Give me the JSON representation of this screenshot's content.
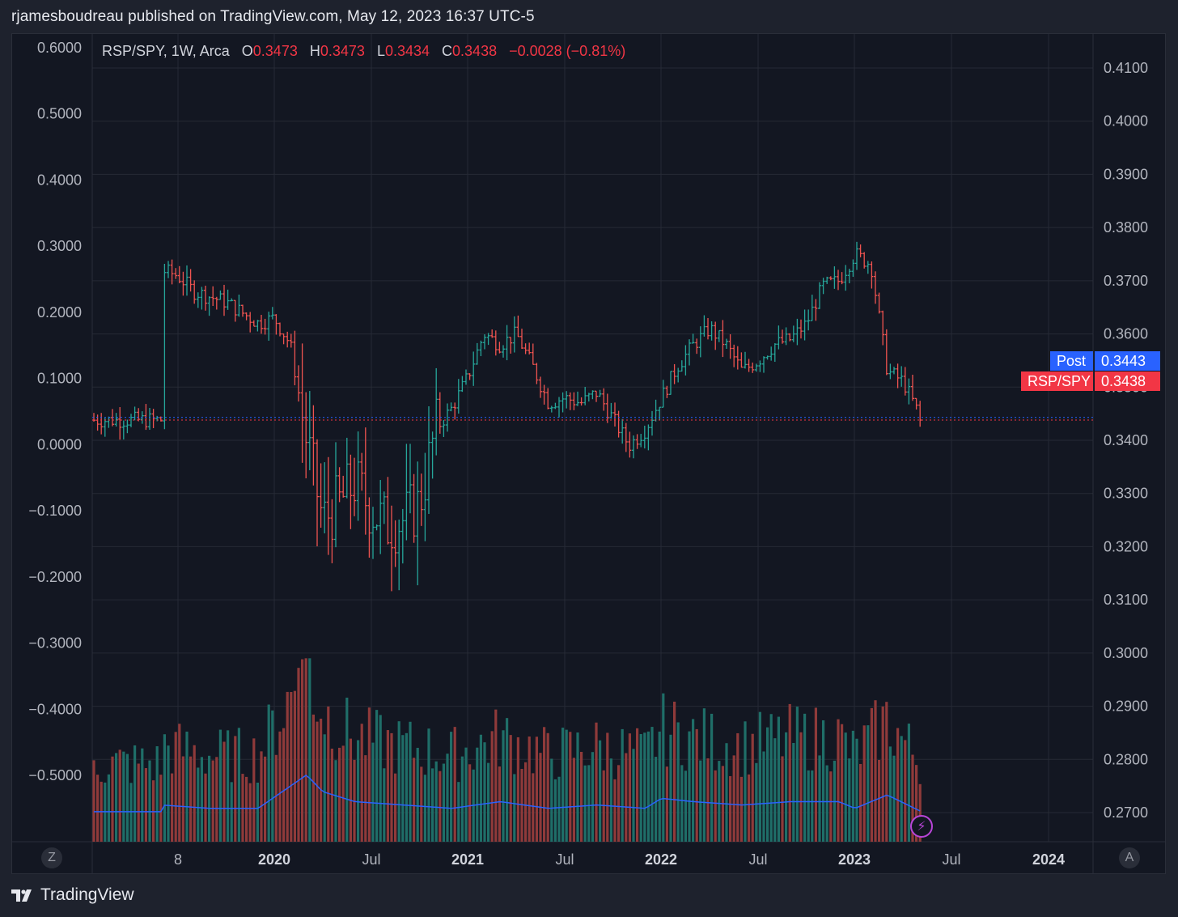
{
  "header": {
    "author": "rjamesboudreau",
    "published_text": "published on TradingView.com, May 12, 2023 16:37 UTC-5"
  },
  "legend": {
    "symbol": "RSP/SPY, 1W, Arca",
    "o_label": "O",
    "o_value": "0.3473",
    "h_label": "H",
    "h_value": "0.3473",
    "l_label": "L",
    "l_value": "0.3434",
    "c_label": "C",
    "c_value": "0.3438",
    "change": "−0.0028 (−0.81%)"
  },
  "tags": {
    "post_label": "Post",
    "post_value": "0.3443",
    "symbol_label": "RSP/SPY",
    "symbol_value": "0.3438"
  },
  "axis_buttons": {
    "left": "Z",
    "right": "A"
  },
  "footer": {
    "brand": "TradingView"
  },
  "colors": {
    "up": "#26a69a",
    "down": "#ef5350",
    "volume_up": "#1f6e68",
    "volume_down": "#8f3a3a",
    "volume_ma": "#2962ff",
    "post_tag": "#2962ff",
    "price_tag": "#f23645",
    "background": "#131722",
    "grid": "#262a35"
  },
  "chart_data": {
    "type": "line",
    "title": "RSP/SPY, 1W, Arca",
    "x_tick_labels": [
      "8",
      "2020",
      "Jul",
      "2021",
      "Jul",
      "2022",
      "Jul",
      "2023",
      "Jul",
      "2024"
    ],
    "left_axis_ticks": [
      "0.6000",
      "0.5000",
      "0.4000",
      "0.3000",
      "0.2000",
      "0.1000",
      "0.0000",
      "−0.1000",
      "−0.2000",
      "−0.3000",
      "−0.4000",
      "−0.5000"
    ],
    "left_axis_values": [
      0.6,
      0.5,
      0.4,
      0.3,
      0.2,
      0.1,
      0.0,
      -0.1,
      -0.2,
      -0.3,
      -0.4,
      -0.5
    ],
    "right_axis_ticks": [
      "0.4100",
      "0.4000",
      "0.3900",
      "0.3800",
      "0.3700",
      "0.3600",
      "0.3500",
      "0.3400",
      "0.3300",
      "0.3200",
      "0.3100",
      "0.3000",
      "0.2900",
      "0.2800",
      "0.2700"
    ],
    "right_axis_values": [
      0.41,
      0.4,
      0.39,
      0.38,
      0.37,
      0.36,
      0.35,
      0.34,
      0.33,
      0.32,
      0.31,
      0.3,
      0.29,
      0.28,
      0.27
    ],
    "price_series": {
      "name": "RSP/SPY",
      "dates": [
        "2019-06",
        "2019-07",
        "2019-08",
        "2019-09",
        "2019-10",
        "2019-11",
        "2019-12",
        "2020-01",
        "2020-02",
        "2020-03",
        "2020-04",
        "2020-05",
        "2020-06",
        "2020-07",
        "2020-08",
        "2020-09",
        "2020-10",
        "2020-11",
        "2020-12",
        "2021-01",
        "2021-02",
        "2021-03",
        "2021-04",
        "2021-05",
        "2021-06",
        "2021-07",
        "2021-08",
        "2021-09",
        "2021-10",
        "2021-11",
        "2021-12",
        "2022-01",
        "2022-02",
        "2022-03",
        "2022-04",
        "2022-05",
        "2022-06",
        "2022-07",
        "2022-08",
        "2022-09",
        "2022-10",
        "2022-11",
        "2022-12",
        "2023-01",
        "2023-02",
        "2023-03",
        "2023-04",
        "2023-05"
      ],
      "close": [
        0.372,
        0.371,
        0.368,
        0.367,
        0.366,
        0.364,
        0.362,
        0.363,
        0.358,
        0.34,
        0.325,
        0.328,
        0.332,
        0.327,
        0.324,
        0.325,
        0.328,
        0.342,
        0.346,
        0.352,
        0.36,
        0.358,
        0.36,
        0.354,
        0.347,
        0.348,
        0.347,
        0.349,
        0.344,
        0.339,
        0.342,
        0.348,
        0.354,
        0.358,
        0.361,
        0.358,
        0.353,
        0.355,
        0.358,
        0.359,
        0.362,
        0.369,
        0.37,
        0.375,
        0.373,
        0.353,
        0.351,
        0.3438
      ]
    },
    "volume_series": {
      "name": "Volume",
      "dates": [
        "2019-06",
        "2019-09",
        "2019-12",
        "2020-03",
        "2020-04",
        "2020-06",
        "2020-09",
        "2020-12",
        "2021-03",
        "2021-06",
        "2021-09",
        "2021-12",
        "2022-01",
        "2022-03",
        "2022-06",
        "2022-09",
        "2022-12",
        "2023-01",
        "2023-03",
        "2023-05"
      ],
      "relative_volume": [
        0.55,
        0.5,
        0.5,
        1.0,
        0.75,
        0.6,
        0.55,
        0.5,
        0.6,
        0.5,
        0.55,
        0.5,
        0.65,
        0.6,
        0.55,
        0.6,
        0.6,
        0.5,
        0.7,
        0.45
      ]
    },
    "last_price": 0.3438,
    "post_price": 0.3443,
    "grid": true,
    "legend_position": "top-left"
  }
}
